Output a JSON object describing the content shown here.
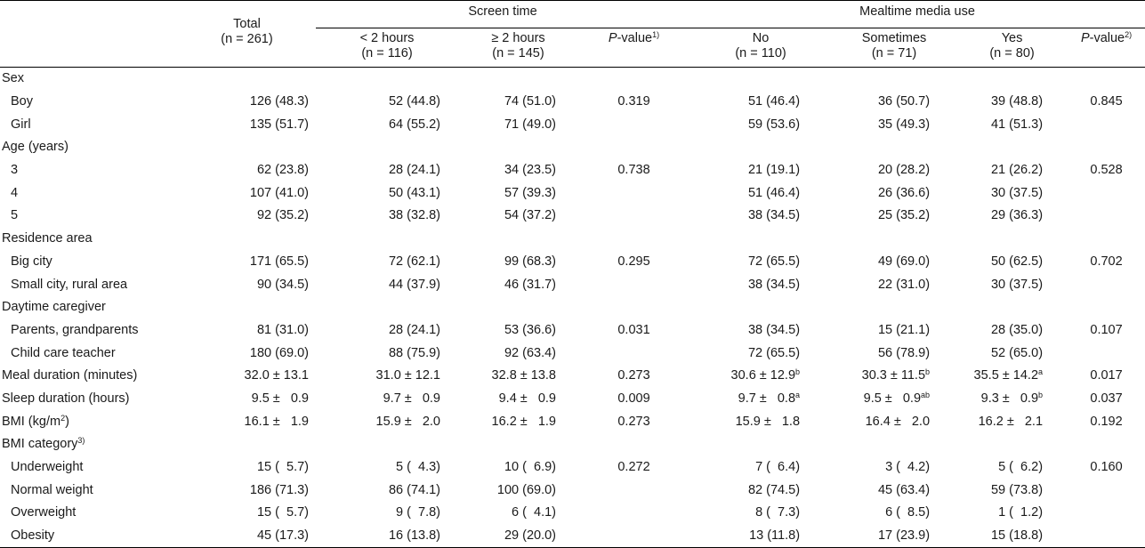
{
  "header": {
    "total": {
      "label": "Total",
      "n": "(n = 261)"
    },
    "screen_time": {
      "label": "Screen time",
      "lt2": {
        "label": "< 2 hours",
        "n": "(n = 116)"
      },
      "ge2": {
        "label": "≥ 2 hours",
        "n": "(n = 145)"
      },
      "p_label_italic": "P",
      "p_label_rest": "-value",
      "p_sup": "1)"
    },
    "mealtime": {
      "label": "Mealtime media use",
      "no": {
        "label": "No",
        "n": "(n = 110)"
      },
      "sometimes": {
        "label": "Sometimes",
        "n": "(n = 71)"
      },
      "yes": {
        "label": "Yes",
        "n": "(n = 80)"
      },
      "p_label_italic": "P",
      "p_label_rest": "-value",
      "p_sup": "2)"
    }
  },
  "rows": [
    {
      "label": "Sex",
      "sub": false,
      "cells": [
        "",
        "",
        "",
        "",
        "",
        "",
        "",
        ""
      ]
    },
    {
      "label": "Boy",
      "sub": true,
      "cells": [
        "126 (48.3)",
        "52 (44.8)",
        "74 (51.0)",
        "0.319",
        "51 (46.4)",
        "36 (50.7)",
        "39 (48.8)",
        "0.845"
      ]
    },
    {
      "label": "Girl",
      "sub": true,
      "cells": [
        "135 (51.7)",
        "64 (55.2)",
        "71 (49.0)",
        "",
        "59 (53.6)",
        "35 (49.3)",
        "41 (51.3)",
        ""
      ]
    },
    {
      "label": "Age (years)",
      "sub": false,
      "cells": [
        "",
        "",
        "",
        "",
        "",
        "",
        "",
        ""
      ]
    },
    {
      "label": "3",
      "sub": true,
      "cells": [
        "62 (23.8)",
        "28 (24.1)",
        "34 (23.5)",
        "0.738",
        "21 (19.1)",
        "20 (28.2)",
        "21 (26.2)",
        "0.528"
      ]
    },
    {
      "label": "4",
      "sub": true,
      "cells": [
        "107 (41.0)",
        "50 (43.1)",
        "57 (39.3)",
        "",
        "51 (46.4)",
        "26 (36.6)",
        "30 (37.5)",
        ""
      ]
    },
    {
      "label": "5",
      "sub": true,
      "cells": [
        "92 (35.2)",
        "38 (32.8)",
        "54 (37.2)",
        "",
        "38 (34.5)",
        "25 (35.2)",
        "29 (36.3)",
        ""
      ]
    },
    {
      "label": "Residence area",
      "sub": false,
      "cells": [
        "",
        "",
        "",
        "",
        "",
        "",
        "",
        ""
      ]
    },
    {
      "label": "Big city",
      "sub": true,
      "cells": [
        "171 (65.5)",
        "72 (62.1)",
        "99 (68.3)",
        "0.295",
        "72 (65.5)",
        "49 (69.0)",
        "50 (62.5)",
        "0.702"
      ]
    },
    {
      "label": "Small city, rural area",
      "sub": true,
      "cells": [
        "90 (34.5)",
        "44 (37.9)",
        "46 (31.7)",
        "",
        "38 (34.5)",
        "22 (31.0)",
        "30 (37.5)",
        ""
      ]
    },
    {
      "label": "Daytime caregiver",
      "sub": false,
      "cells": [
        "",
        "",
        "",
        "",
        "",
        "",
        "",
        ""
      ]
    },
    {
      "label": "Parents, grandparents",
      "sub": true,
      "cells": [
        "81 (31.0)",
        "28 (24.1)",
        "53 (36.6)",
        "0.031",
        "38 (34.5)",
        "15 (21.1)",
        "28 (35.0)",
        "0.107"
      ]
    },
    {
      "label": "Child care teacher",
      "sub": true,
      "cells": [
        "180 (69.0)",
        "88 (75.9)",
        "92 (63.4)",
        "",
        "72 (65.5)",
        "56 (78.9)",
        "52 (65.0)",
        ""
      ]
    },
    {
      "label": "Meal duration (minutes)",
      "sub": false,
      "cells": [
        "32.0 ± 13.1",
        "31.0 ± 12.1",
        "32.8 ± 13.8",
        "0.273",
        "30.6 ± 12.9",
        "30.3 ± 11.5",
        "35.5 ± 14.2",
        "0.017"
      ],
      "sups": {
        "4": "b",
        "5": "b",
        "6": "a"
      }
    },
    {
      "label": "Sleep duration (hours)",
      "sub": false,
      "cells": [
        "9.5 ±   0.9",
        "9.7 ±   0.9",
        "9.4 ±   0.9",
        "0.009",
        "9.7 ±   0.8",
        "9.5 ±   0.9",
        "9.3 ±   0.9",
        "0.037"
      ],
      "sups": {
        "4": "a",
        "5": "ab",
        "6": "b"
      }
    },
    {
      "label": "BMI (kg/m",
      "label_sup": "2",
      "label_after": ")",
      "sub": false,
      "cells": [
        "16.1 ±   1.9",
        "15.9 ±   2.0",
        "16.2 ±   1.9",
        "0.273",
        "15.9 ±   1.8",
        "16.4 ±   2.0",
        "16.2 ±   2.1",
        "0.192"
      ]
    },
    {
      "label": "BMI category",
      "label_sup": "3)",
      "sub": false,
      "cells": [
        "",
        "",
        "",
        "",
        "",
        "",
        "",
        ""
      ]
    },
    {
      "label": "Underweight",
      "sub": true,
      "cells": [
        "15 (  5.7)",
        "5 (  4.3)",
        "10 (  6.9)",
        "0.272",
        "7 (  6.4)",
        "3 (  4.2)",
        "5 (  6.2)",
        "0.160"
      ]
    },
    {
      "label": "Normal weight",
      "sub": true,
      "cells": [
        "186 (71.3)",
        "86 (74.1)",
        "100 (69.0)",
        "",
        "82 (74.5)",
        "45 (63.4)",
        "59 (73.8)",
        ""
      ]
    },
    {
      "label": "Overweight",
      "sub": true,
      "cells": [
        "15 (  5.7)",
        "9 (  7.8)",
        "6 (  4.1)",
        "",
        "8 (  7.3)",
        "6 (  8.5)",
        "1 (  1.2)",
        ""
      ]
    },
    {
      "label": "Obesity",
      "sub": true,
      "cells": [
        "45 (17.3)",
        "16 (13.8)",
        "29 (20.0)",
        "",
        "13 (11.8)",
        "17 (23.9)",
        "15 (18.8)",
        ""
      ]
    }
  ]
}
